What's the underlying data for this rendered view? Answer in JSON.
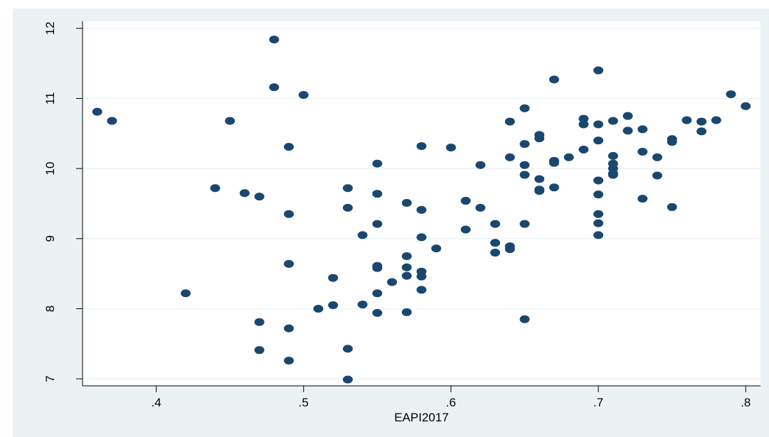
{
  "chart_data": {
    "type": "scatter",
    "xlabel": "EAPI2017",
    "ylabel": "",
    "xlim": [
      0.35,
      0.81
    ],
    "ylim": [
      6.9,
      12.1
    ],
    "x_ticks": [
      ".4",
      ".5",
      ".6",
      ".7",
      ".8"
    ],
    "x_tick_values": [
      0.4,
      0.5,
      0.6,
      0.7,
      0.8
    ],
    "y_ticks": [
      "7",
      "8",
      "9",
      "10",
      "11",
      "12"
    ],
    "y_tick_values": [
      7,
      8,
      9,
      10,
      11,
      12
    ],
    "grid": true,
    "colors": {
      "outer_bg": "#eaf2f3",
      "plot_bg": "#ffffff",
      "marker": "#1a476f",
      "grid": "#eaf2f3"
    },
    "points": [
      [
        0.36,
        10.81
      ],
      [
        0.37,
        10.68
      ],
      [
        0.42,
        8.22
      ],
      [
        0.44,
        9.72
      ],
      [
        0.45,
        10.68
      ],
      [
        0.46,
        9.65
      ],
      [
        0.47,
        9.6
      ],
      [
        0.47,
        7.81
      ],
      [
        0.47,
        7.41
      ],
      [
        0.48,
        11.84
      ],
      [
        0.48,
        11.16
      ],
      [
        0.49,
        10.31
      ],
      [
        0.49,
        9.35
      ],
      [
        0.49,
        8.64
      ],
      [
        0.49,
        7.72
      ],
      [
        0.49,
        7.26
      ],
      [
        0.5,
        11.05
      ],
      [
        0.51,
        8.0
      ],
      [
        0.52,
        8.44
      ],
      [
        0.52,
        8.05
      ],
      [
        0.53,
        9.72
      ],
      [
        0.53,
        9.44
      ],
      [
        0.53,
        7.43
      ],
      [
        0.53,
        6.99
      ],
      [
        0.54,
        9.05
      ],
      [
        0.54,
        8.06
      ],
      [
        0.55,
        10.07
      ],
      [
        0.55,
        9.64
      ],
      [
        0.55,
        9.21
      ],
      [
        0.55,
        8.61
      ],
      [
        0.55,
        8.58
      ],
      [
        0.55,
        8.22
      ],
      [
        0.55,
        7.94
      ],
      [
        0.56,
        8.38
      ],
      [
        0.57,
        9.51
      ],
      [
        0.57,
        8.75
      ],
      [
        0.57,
        8.59
      ],
      [
        0.57,
        8.47
      ],
      [
        0.57,
        7.95
      ],
      [
        0.58,
        10.32
      ],
      [
        0.58,
        9.41
      ],
      [
        0.58,
        9.02
      ],
      [
        0.58,
        8.53
      ],
      [
        0.58,
        8.46
      ],
      [
        0.58,
        8.27
      ],
      [
        0.59,
        8.86
      ],
      [
        0.6,
        10.3
      ],
      [
        0.61,
        9.54
      ],
      [
        0.61,
        9.13
      ],
      [
        0.62,
        10.05
      ],
      [
        0.62,
        9.44
      ],
      [
        0.63,
        9.21
      ],
      [
        0.63,
        8.94
      ],
      [
        0.63,
        8.8
      ],
      [
        0.64,
        10.67
      ],
      [
        0.64,
        10.16
      ],
      [
        0.64,
        8.89
      ],
      [
        0.64,
        8.85
      ],
      [
        0.65,
        10.86
      ],
      [
        0.65,
        10.35
      ],
      [
        0.65,
        10.05
      ],
      [
        0.65,
        9.91
      ],
      [
        0.65,
        9.21
      ],
      [
        0.65,
        7.85
      ],
      [
        0.66,
        10.48
      ],
      [
        0.66,
        10.43
      ],
      [
        0.66,
        9.85
      ],
      [
        0.66,
        9.7
      ],
      [
        0.66,
        9.68
      ],
      [
        0.67,
        11.27
      ],
      [
        0.67,
        10.11
      ],
      [
        0.67,
        10.08
      ],
      [
        0.67,
        9.73
      ],
      [
        0.68,
        10.16
      ],
      [
        0.69,
        10.71
      ],
      [
        0.69,
        10.63
      ],
      [
        0.69,
        10.27
      ],
      [
        0.7,
        11.4
      ],
      [
        0.7,
        10.63
      ],
      [
        0.7,
        10.4
      ],
      [
        0.7,
        9.83
      ],
      [
        0.7,
        9.63
      ],
      [
        0.7,
        9.35
      ],
      [
        0.7,
        9.22
      ],
      [
        0.7,
        9.05
      ],
      [
        0.71,
        10.68
      ],
      [
        0.71,
        10.18
      ],
      [
        0.71,
        10.07
      ],
      [
        0.71,
        10.0
      ],
      [
        0.71,
        9.93
      ],
      [
        0.71,
        9.91
      ],
      [
        0.72,
        10.75
      ],
      [
        0.72,
        10.54
      ],
      [
        0.73,
        10.56
      ],
      [
        0.73,
        10.24
      ],
      [
        0.73,
        9.57
      ],
      [
        0.74,
        10.16
      ],
      [
        0.74,
        9.9
      ],
      [
        0.75,
        10.42
      ],
      [
        0.75,
        10.38
      ],
      [
        0.75,
        9.45
      ],
      [
        0.76,
        10.69
      ],
      [
        0.77,
        10.67
      ],
      [
        0.77,
        10.53
      ],
      [
        0.78,
        10.69
      ],
      [
        0.79,
        11.06
      ],
      [
        0.8,
        10.89
      ]
    ]
  }
}
